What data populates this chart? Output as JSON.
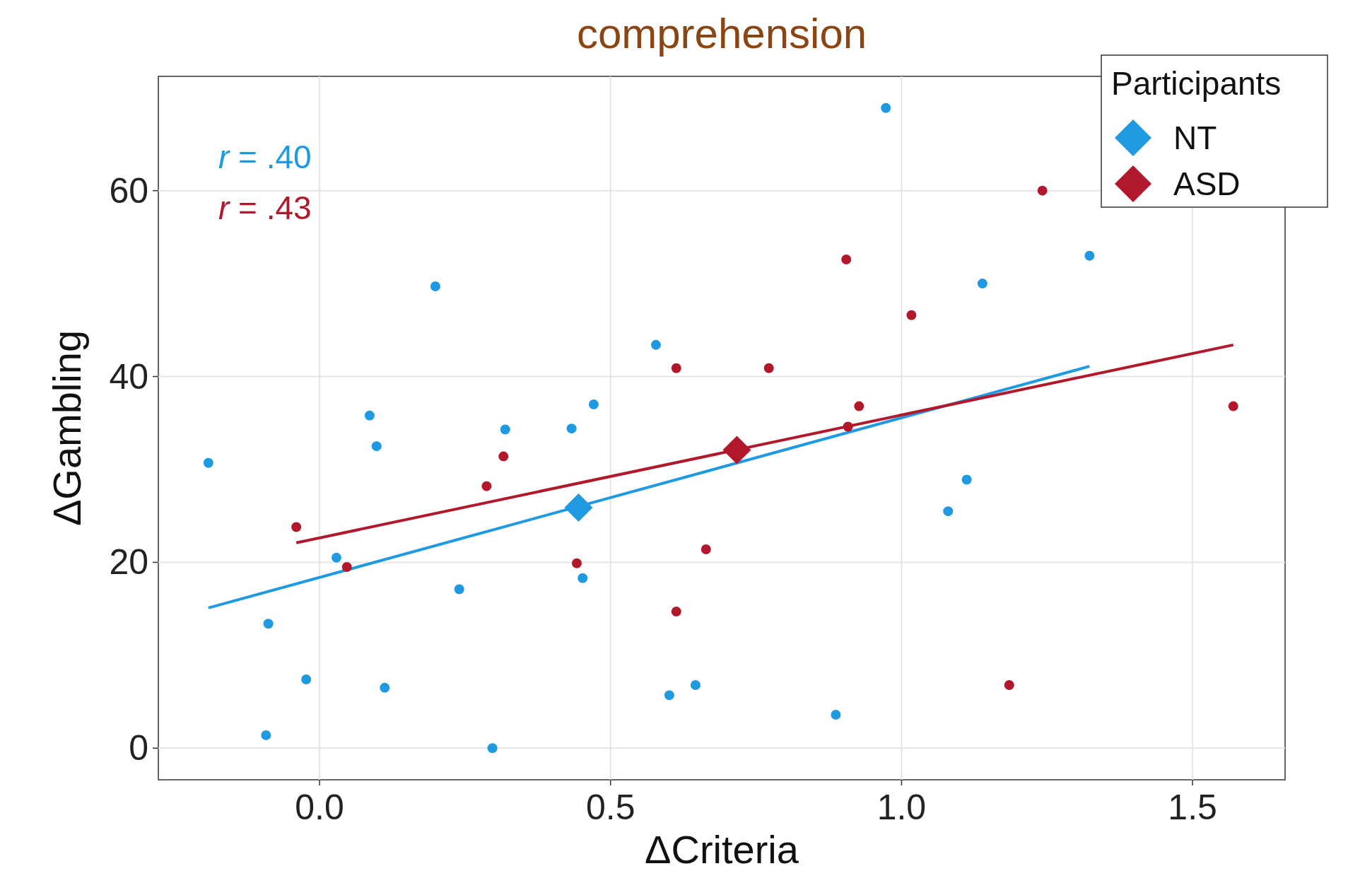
{
  "chart_data": {
    "type": "scatter",
    "title": "comprehension",
    "xlabel": "ΔCriteria",
    "ylabel": "ΔGambling",
    "legend_title": "Participants",
    "legend": "top right",
    "grid": true,
    "xlim": [
      -0.277,
      1.659
    ],
    "xticks": [
      {
        "value": 0,
        "label": "0.0"
      },
      0.5,
      {
        "value": 1,
        "label": "1.0"
      },
      1.5
    ],
    "ylim": [
      -3.4,
      72.3
    ],
    "yticks": [
      0,
      20,
      40,
      60
    ],
    "annotations": [
      "r = .40",
      "r = .43"
    ],
    "series": [
      {
        "marker": "circle",
        "color": "#1f9ae0",
        "x": [
          -0.191,
          0.199,
          0.086,
          0.098,
          0.029,
          -0.088,
          -0.023,
          -0.092,
          0.112,
          0.24,
          0.297,
          0.319,
          0.433,
          0.471,
          0.452,
          0.578,
          0.601,
          0.646,
          0.887,
          0.973,
          1.08,
          1.112,
          1.139,
          1.323
        ],
        "values": [
          30.7,
          49.7,
          35.8,
          32.5,
          20.5,
          13.4,
          7.4,
          1.4,
          6.5,
          17.1,
          0,
          34.3,
          34.4,
          37,
          18.3,
          43.4,
          5.7,
          6.8,
          3.6,
          68.9,
          25.5,
          28.9,
          50,
          53
        ]
      },
      {
        "marker": "circle",
        "color": "#b2182b",
        "x": [
          -0.04,
          0.047,
          0.287,
          0.316,
          0.442,
          0.613,
          0.613,
          0.664,
          0.772,
          0.905,
          0.908,
          0.927,
          1.017,
          1.185,
          1.242,
          1.57
        ],
        "values": [
          23.8,
          19.5,
          28.2,
          31.4,
          19.9,
          40.9,
          14.7,
          21.4,
          40.9,
          52.6,
          34.6,
          36.8,
          46.6,
          6.8,
          60,
          36.8
        ]
      },
      {
        "type": "line",
        "color": "#1f9ae0",
        "x": [
          -0.191,
          1.323
        ],
        "values": [
          15.1,
          41.1
        ]
      },
      {
        "type": "line",
        "color": "#b2182b",
        "x": [
          -0.04,
          1.57
        ],
        "values": [
          22.1,
          43.4
        ]
      },
      {
        "marker": "diamond",
        "name": "NT",
        "color": "#1f9ae0",
        "x": [
          0.445
        ],
        "values": [
          25.9
        ]
      },
      {
        "marker": "diamond",
        "name": "ASD",
        "color": "#b2182b",
        "x": [
          0.717
        ],
        "values": [
          32.1
        ]
      }
    ]
  }
}
